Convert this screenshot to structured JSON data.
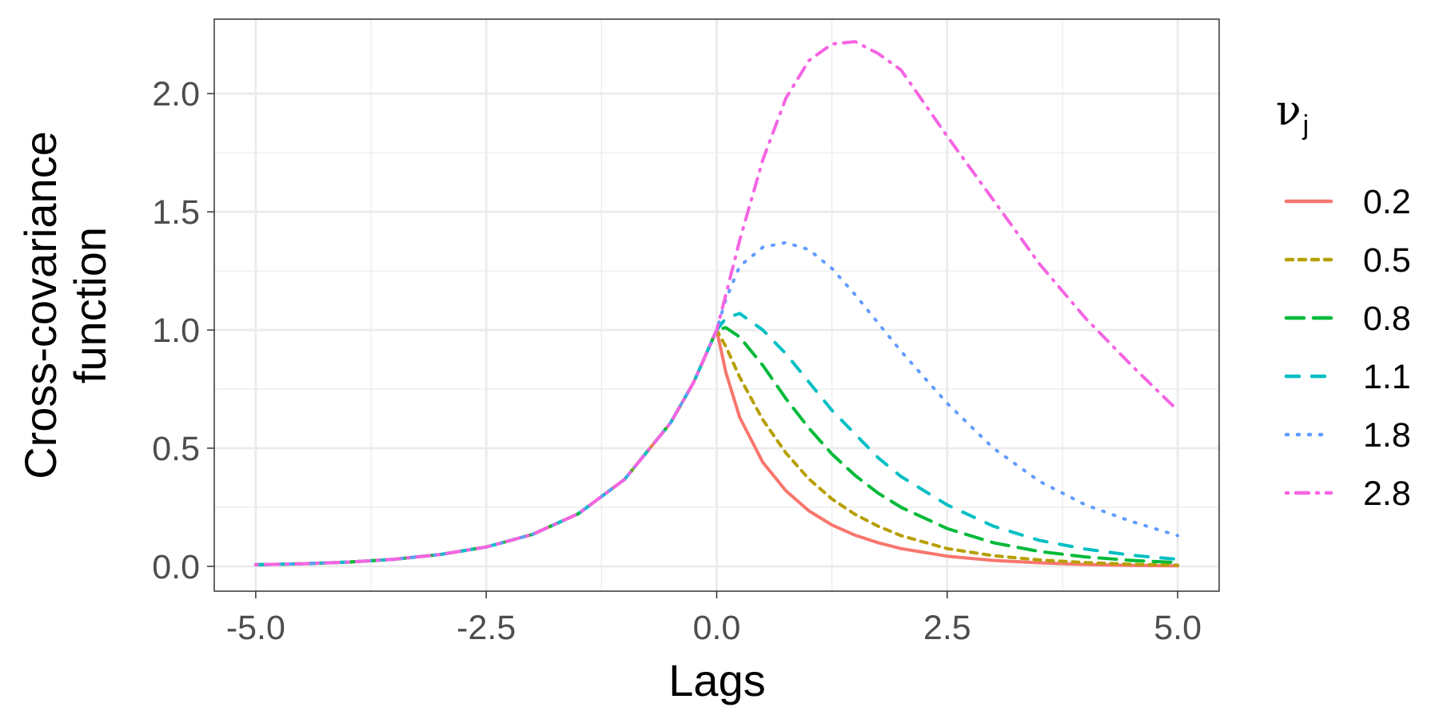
{
  "chart_data": {
    "type": "line",
    "xlabel": "Lags",
    "ylabel_line1": "Cross-covariance",
    "ylabel_line2": "function",
    "xlim": [
      -5.0,
      5.0
    ],
    "ylim": [
      0.0,
      2.2
    ],
    "x_ticks": [
      "-5.0",
      "-2.5",
      "0.0",
      "2.5",
      "5.0"
    ],
    "y_ticks": [
      "0.0",
      "0.5",
      "1.0",
      "1.5",
      "2.0"
    ],
    "grid": true,
    "legend": {
      "placement": "right",
      "title_main": "ν",
      "title_sub": "j"
    },
    "x": [
      -5.0,
      -4.5,
      -4.0,
      -3.5,
      -3.0,
      -2.5,
      -2.0,
      -1.5,
      -1.0,
      -0.5,
      -0.25,
      0.0,
      0.1,
      0.25,
      0.5,
      0.75,
      1.0,
      1.25,
      1.5,
      1.75,
      2.0,
      2.5,
      3.0,
      3.5,
      4.0,
      4.5,
      5.0
    ],
    "series": [
      {
        "name": "0.2",
        "color": "#F8766D",
        "dash": "solid",
        "values": [
          0.007,
          0.011,
          0.018,
          0.03,
          0.05,
          0.082,
          0.135,
          0.223,
          0.368,
          0.607,
          0.779,
          1.0,
          0.82,
          0.63,
          0.44,
          0.32,
          0.235,
          0.175,
          0.132,
          0.1,
          0.075,
          0.043,
          0.025,
          0.015,
          0.008,
          0.004,
          0.002
        ]
      },
      {
        "name": "0.5",
        "color": "#B79F00",
        "dash": "short",
        "values": [
          0.007,
          0.011,
          0.018,
          0.03,
          0.05,
          0.082,
          0.135,
          0.223,
          0.368,
          0.607,
          0.779,
          1.0,
          0.93,
          0.8,
          0.62,
          0.48,
          0.37,
          0.285,
          0.22,
          0.17,
          0.13,
          0.075,
          0.045,
          0.027,
          0.016,
          0.009,
          0.005
        ]
      },
      {
        "name": "0.8",
        "color": "#00BA38",
        "dash": "long",
        "values": [
          0.007,
          0.011,
          0.018,
          0.03,
          0.05,
          0.082,
          0.135,
          0.223,
          0.368,
          0.607,
          0.779,
          1.0,
          1.01,
          0.97,
          0.85,
          0.71,
          0.585,
          0.475,
          0.385,
          0.31,
          0.25,
          0.16,
          0.1,
          0.063,
          0.04,
          0.025,
          0.016
        ]
      },
      {
        "name": "1.1",
        "color": "#00BFC4",
        "dash": "mid",
        "values": [
          0.007,
          0.011,
          0.018,
          0.03,
          0.05,
          0.082,
          0.135,
          0.223,
          0.368,
          0.607,
          0.779,
          1.0,
          1.05,
          1.07,
          1.0,
          0.9,
          0.78,
          0.66,
          0.56,
          0.46,
          0.38,
          0.26,
          0.17,
          0.11,
          0.073,
          0.047,
          0.03
        ]
      },
      {
        "name": "1.8",
        "color": "#619CFF",
        "dash": "dotted",
        "values": [
          0.007,
          0.011,
          0.018,
          0.03,
          0.05,
          0.082,
          0.135,
          0.223,
          0.368,
          0.607,
          0.779,
          1.0,
          1.13,
          1.27,
          1.35,
          1.37,
          1.34,
          1.26,
          1.15,
          1.03,
          0.91,
          0.69,
          0.5,
          0.36,
          0.26,
          0.19,
          0.13
        ]
      },
      {
        "name": "2.8",
        "color": "#F564E3",
        "dash": "dotdash",
        "values": [
          0.007,
          0.011,
          0.018,
          0.03,
          0.05,
          0.082,
          0.135,
          0.223,
          0.368,
          0.607,
          0.779,
          1.0,
          1.15,
          1.38,
          1.72,
          1.98,
          2.14,
          2.21,
          2.22,
          2.17,
          2.1,
          1.82,
          1.55,
          1.28,
          1.05,
          0.85,
          0.66
        ]
      }
    ]
  }
}
